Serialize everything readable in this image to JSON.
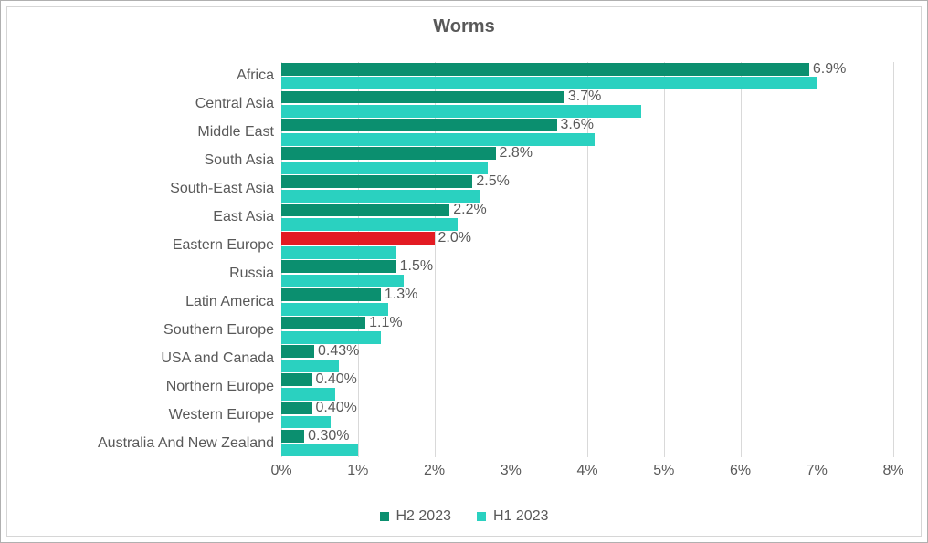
{
  "chart": {
    "type": "bar-horizontal-grouped",
    "title": "Worms",
    "title_fontsize": 20,
    "title_color": "#595959",
    "background_color": "#ffffff",
    "plot_border_color": "#b0b0b0",
    "inner_border_color": "#d6d6d6",
    "grid_color": "#d9d9d9",
    "label_color": "#595959",
    "label_fontsize": 16,
    "xlim": [
      0,
      8
    ],
    "xtick_step": 1,
    "xtick_labels": [
      "0%",
      "1%",
      "2%",
      "3%",
      "4%",
      "5%",
      "6%",
      "7%",
      "8%"
    ],
    "bar_gap_pct": 10,
    "categories": [
      "Africa",
      "Central Asia",
      "Middle East",
      "South Asia",
      "South-East Asia",
      "East Asia",
      "Eastern Europe",
      "Russia",
      "Latin America",
      "Southern Europe",
      "USA and Canada",
      "Northern Europe",
      "Western Europe",
      "Australia And New Zealand"
    ],
    "series": [
      {
        "name": "H2 2023",
        "color_default": "#0b8f6f",
        "colors": [
          "#0b8f6f",
          "#0b8f6f",
          "#0b8f6f",
          "#0b8f6f",
          "#0b8f6f",
          "#0b8f6f",
          "#e31b23",
          "#0b8f6f",
          "#0b8f6f",
          "#0b8f6f",
          "#0b8f6f",
          "#0b8f6f",
          "#0b8f6f",
          "#0b8f6f"
        ],
        "values": [
          6.9,
          3.7,
          3.6,
          2.8,
          2.5,
          2.2,
          2.0,
          1.5,
          1.3,
          1.1,
          0.43,
          0.4,
          0.4,
          0.3
        ],
        "data_labels": [
          "6.9%",
          "3.7%",
          "3.6%",
          "2.8%",
          "2.5%",
          "2.2%",
          "2.0%",
          "1.5%",
          "1.3%",
          "1.1%",
          "0.43%",
          "0.40%",
          "0.40%",
          "0.30%"
        ]
      },
      {
        "name": "H1 2023",
        "color_default": "#2ad1c0",
        "colors": [
          "#2ad1c0",
          "#2ad1c0",
          "#2ad1c0",
          "#2ad1c0",
          "#2ad1c0",
          "#2ad1c0",
          "#2ad1c0",
          "#2ad1c0",
          "#2ad1c0",
          "#2ad1c0",
          "#2ad1c0",
          "#2ad1c0",
          "#2ad1c0",
          "#2ad1c0"
        ],
        "values": [
          7.0,
          4.7,
          4.1,
          2.7,
          2.6,
          2.3,
          1.5,
          1.6,
          1.4,
          1.3,
          0.75,
          0.7,
          0.65,
          1.0
        ],
        "data_labels": null
      }
    ],
    "legend": {
      "items": [
        "H2 2023",
        "H1 2023"
      ],
      "swatch_size": 10
    }
  }
}
